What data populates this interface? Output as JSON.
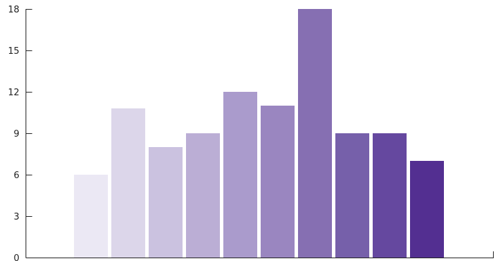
{
  "chart_data": {
    "type": "bar",
    "categories": [
      "",
      "",
      "",
      "",
      "",
      "",
      "",
      "",
      "",
      ""
    ],
    "values": [
      6,
      10.8,
      8,
      9,
      12,
      11,
      18,
      9,
      9,
      7
    ],
    "title": "",
    "xlabel": "",
    "ylabel": "",
    "ylim": [
      0,
      18
    ],
    "yticks": [
      0,
      3,
      6,
      9,
      12,
      15,
      18
    ],
    "grid": false,
    "colors": [
      "#ebe8f4",
      "#dcd6ea",
      "#cbc2e0",
      "#bbaed5",
      "#aa9bcc",
      "#9a86c0",
      "#866fb2",
      "#7660aa",
      "#65489f",
      "#532f91"
    ]
  }
}
